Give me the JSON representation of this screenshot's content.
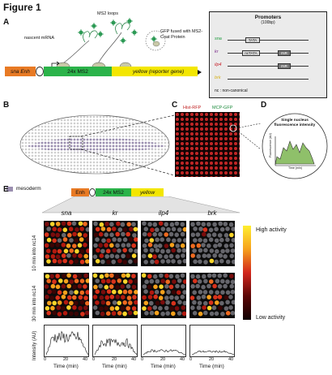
{
  "figure_title": "Figure 1",
  "panels": {
    "A": "A",
    "B": "B",
    "C": "C",
    "D": "D",
    "E": "E"
  },
  "panelA": {
    "ms2_loops": "MS2 loops",
    "nascent_mrna": "nascent mRNA",
    "gfp_label": "GFP fused with MS2-Coat Protein",
    "enh_label": "sna Enh",
    "ms2_label": "24x MS2",
    "yellow_label": "yellow (reporter gene)"
  },
  "promoters": {
    "title": "Promoters",
    "subtitle": "(100bp)",
    "rows": [
      {
        "gene": "sna",
        "color": "#1a9a3a",
        "box1": "TATA",
        "box2": ""
      },
      {
        "gene": "kr",
        "color": "#7a2a8a",
        "box1": "ncTATA",
        "box2": "INR"
      },
      {
        "gene": "ilp4",
        "color": "#c8202a",
        "box1": "",
        "box2": "INR"
      },
      {
        "gene": "brk",
        "color": "#d7b21a",
        "box1": "",
        "box2": ""
      }
    ],
    "footnote": "nc : non-canonical"
  },
  "panelB": {
    "legend": "mesoderm"
  },
  "panelC": {
    "hist": "Hist-RFP",
    "mcp": "MCP-GFP"
  },
  "panelD": {
    "title": "Single nucleus fluorescence intensity",
    "ylabel": "Fluorescence (AU)",
    "xlabel": "Time (min)"
  },
  "panelE": {
    "construct": {
      "enh": "Enh",
      "ms2": "24x MS2",
      "yellow": "yellow"
    },
    "columns": [
      "sna",
      "kr",
      "ilp4",
      "brk"
    ],
    "row_labels": [
      "10 min into nc14",
      "30 min into nc14"
    ],
    "colorbar": {
      "high": "High activity",
      "low": "Low activity"
    },
    "intensity_label": "Intensity (AU)",
    "time_label": "Time (min)",
    "ticks": [
      "0",
      "20",
      "40"
    ]
  },
  "colors": {
    "ms2_green": "#2bb34a",
    "yellow": "#f3e600",
    "enh_orange": "#e87a24",
    "nuclei_grey": "#8a8a90",
    "heat_low": "#200000",
    "heat_high": "#ffee30"
  }
}
